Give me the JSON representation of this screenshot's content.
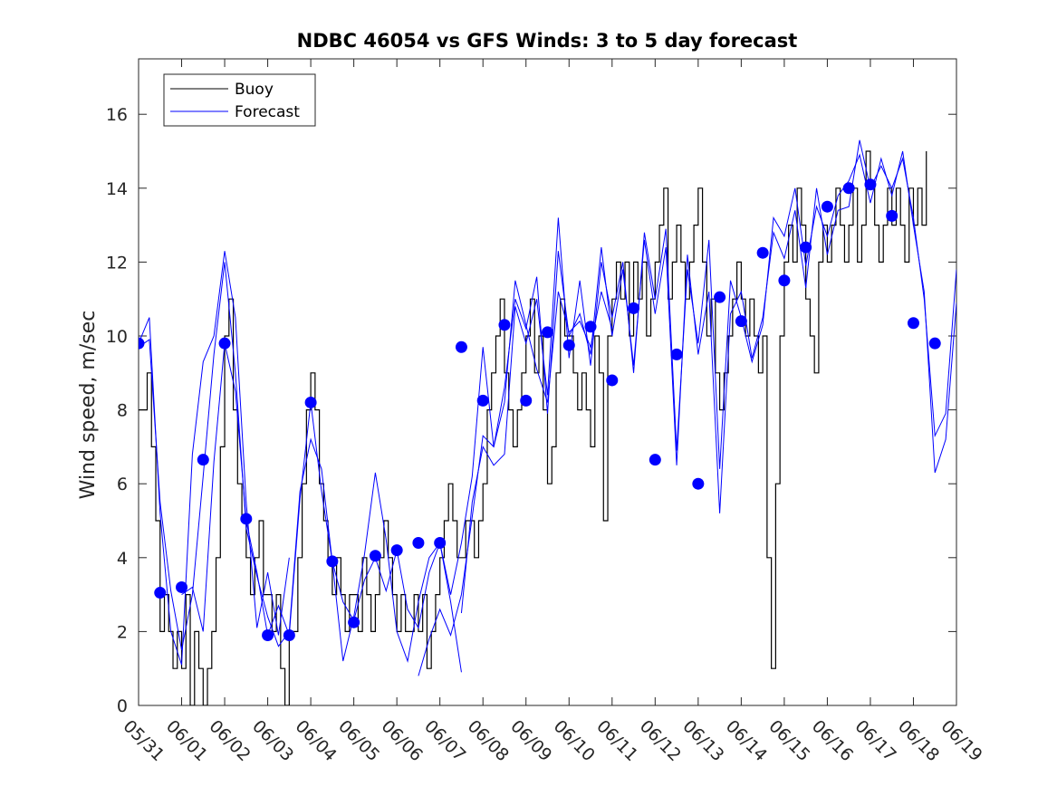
{
  "chart_data": {
    "type": "line",
    "title": "NDBC 46054 vs GFS Winds: 3 to 5 day forecast",
    "xlabel": "",
    "ylabel": "Wind speed, m/sec",
    "ylim": [
      0,
      17.5
    ],
    "yticks": [
      0,
      2,
      4,
      6,
      8,
      10,
      12,
      14,
      16
    ],
    "xlim": [
      0,
      19
    ],
    "xtick_labels": [
      "05/31",
      "06/01",
      "06/02",
      "06/03",
      "06/04",
      "06/05",
      "06/06",
      "06/07",
      "06/08",
      "06/09",
      "06/10",
      "06/11",
      "06/12",
      "06/13",
      "06/14",
      "06/15",
      "06/16",
      "06/17",
      "06/18",
      "06/19"
    ],
    "grid": false,
    "legend": {
      "position": "top-left",
      "entries": [
        "Buoy",
        "Forecast"
      ]
    },
    "colors": {
      "buoy": "#000000",
      "forecast": "#0000ff"
    },
    "series": [
      {
        "name": "Buoy",
        "x": [
          0.0,
          0.1,
          0.2,
          0.3,
          0.4,
          0.5,
          0.6,
          0.7,
          0.8,
          0.9,
          1.0,
          1.1,
          1.2,
          1.3,
          1.4,
          1.5,
          1.6,
          1.7,
          1.8,
          1.9,
          2.0,
          2.1,
          2.2,
          2.3,
          2.4,
          2.5,
          2.6,
          2.7,
          2.8,
          2.9,
          3.0,
          3.1,
          3.2,
          3.3,
          3.4,
          3.5,
          3.6,
          3.7,
          3.8,
          3.9,
          4.0,
          4.1,
          4.2,
          4.3,
          4.4,
          4.5,
          4.6,
          4.7,
          4.8,
          4.9,
          5.0,
          5.1,
          5.2,
          5.3,
          5.4,
          5.5,
          5.6,
          5.7,
          5.8,
          5.9,
          6.0,
          6.1,
          6.2,
          6.3,
          6.4,
          6.5,
          6.6,
          6.7,
          6.8,
          6.9,
          7.0,
          7.1,
          7.2,
          7.3,
          7.4,
          7.5,
          7.6,
          7.7,
          7.8,
          7.9,
          8.0,
          8.1,
          8.2,
          8.3,
          8.4,
          8.5,
          8.6,
          8.7,
          8.8,
          8.9,
          9.0,
          9.1,
          9.2,
          9.3,
          9.4,
          9.5,
          9.6,
          9.7,
          9.8,
          9.9,
          10.0,
          10.1,
          10.2,
          10.3,
          10.4,
          10.5,
          10.6,
          10.7,
          10.8,
          10.9,
          11.0,
          11.1,
          11.2,
          11.3,
          11.4,
          11.5,
          11.6,
          11.7,
          11.8,
          11.9,
          12.0,
          12.1,
          12.2,
          12.3,
          12.4,
          12.5,
          12.6,
          12.7,
          12.8,
          12.9,
          13.0,
          13.1,
          13.2,
          13.3,
          13.4,
          13.5,
          13.6,
          13.7,
          13.8,
          13.9,
          14.0,
          14.1,
          14.2,
          14.3,
          14.4,
          14.5,
          14.6,
          14.7,
          14.8,
          14.9,
          15.0,
          15.1,
          15.2,
          15.3,
          15.4,
          15.5,
          15.6,
          15.7,
          15.8,
          15.9,
          16.0,
          16.1,
          16.2,
          16.3,
          16.4,
          16.5,
          16.6,
          16.7,
          16.8,
          16.9,
          17.0,
          17.1,
          17.2,
          17.3,
          17.4,
          17.5,
          17.6,
          17.7,
          17.8,
          17.9,
          18.0,
          18.1,
          18.2,
          18.3
        ],
        "values": [
          8,
          8,
          9,
          7,
          5,
          2,
          3,
          2,
          1,
          2,
          1,
          3,
          0,
          2,
          1,
          0,
          1,
          2,
          4,
          7,
          10,
          11,
          8,
          6,
          5,
          4,
          3,
          4,
          5,
          3,
          3,
          2,
          3,
          1,
          0,
          2,
          2,
          4,
          6,
          8,
          9,
          8,
          6,
          5,
          4,
          3,
          4,
          3,
          2,
          3,
          3,
          2,
          4,
          3,
          2,
          3,
          4,
          5,
          4,
          3,
          2,
          3,
          2,
          2,
          3,
          2,
          3,
          1,
          2,
          3,
          4,
          5,
          6,
          5,
          4,
          4,
          5,
          5,
          4,
          5,
          6,
          8,
          9,
          10,
          11,
          9,
          8,
          7,
          8,
          9,
          10,
          11,
          9,
          10,
          8,
          6,
          7,
          9,
          11,
          10,
          10,
          9,
          8,
          9,
          8,
          7,
          10,
          9,
          5,
          10,
          11,
          12,
          11,
          12,
          10,
          12,
          11,
          12,
          10,
          11,
          12,
          13,
          14,
          11,
          12,
          13,
          12,
          11,
          12,
          13,
          14,
          12,
          10,
          11,
          9,
          8,
          9,
          10,
          11,
          12,
          11,
          10,
          11,
          10,
          9,
          10,
          4,
          1,
          6,
          10,
          12,
          13,
          12,
          14,
          13,
          11,
          10,
          9,
          12,
          13,
          12,
          13,
          14,
          13,
          12,
          13,
          14,
          12,
          13,
          15,
          14,
          13,
          12,
          13,
          14,
          13,
          14,
          13,
          12,
          14,
          13,
          14,
          13,
          15
        ]
      },
      {
        "name": "Forecast",
        "runs": [
          {
            "x": [
              0.0,
              0.25,
              0.5,
              0.75,
              1.0,
              1.25,
              1.5,
              1.75,
              2.0,
              2.25,
              2.5,
              2.75,
              3.0,
              3.25,
              3.5
            ],
            "values": [
              9.8,
              10.5,
              5.2,
              2.0,
              1.1,
              6.8,
              9.3,
              10.0,
              12.3,
              10.5,
              5.5,
              2.1,
              3.6,
              1.9,
              4.0
            ]
          },
          {
            "x": [
              0.0,
              0.25,
              0.5,
              0.75,
              1.0,
              1.25,
              1.5,
              1.75,
              2.0,
              2.25,
              2.5,
              2.75,
              3.0,
              3.25,
              3.5,
              3.75,
              4.0,
              4.25,
              4.5,
              4.75,
              5.0,
              5.25,
              5.5,
              5.75,
              6.0,
              6.25,
              6.5,
              6.75,
              7.0,
              7.25,
              7.5
            ],
            "values": [
              9.7,
              9.9,
              5.5,
              3.1,
              1.5,
              3.0,
              6.2,
              9.5,
              12.0,
              9.0,
              4.8,
              3.5,
              2.4,
              1.6,
              2.0,
              5.8,
              7.2,
              6.4,
              3.9,
              1.2,
              2.4,
              4.1,
              6.3,
              4.5,
              2.0,
              1.2,
              2.8,
              4.0,
              4.4,
              2.8,
              0.9
            ]
          },
          {
            "x": [
              1.0,
              1.25,
              1.5,
              1.75,
              2.0,
              2.25,
              2.5,
              2.75,
              3.0,
              3.25,
              3.5,
              3.75,
              4.0,
              4.25,
              4.5,
              4.75,
              5.0,
              5.25,
              5.5,
              5.75,
              6.0,
              6.25,
              6.5,
              6.75,
              7.0,
              7.25,
              7.5,
              7.75,
              8.0,
              8.25,
              8.5,
              8.75,
              9.0,
              9.25,
              9.5,
              9.75,
              10.0,
              10.25,
              10.5,
              10.75,
              11.0
            ],
            "values": [
              3.0,
              3.2,
              2.0,
              6.6,
              9.8,
              8.5,
              5.0,
              3.6,
              1.9,
              2.7,
              1.9,
              5.6,
              8.2,
              5.8,
              3.9,
              2.8,
              2.3,
              3.4,
              4.0,
              3.1,
              4.2,
              2.6,
              2.1,
              3.6,
              4.4,
              3.0,
              4.4,
              6.2,
              9.7,
              7.0,
              8.2,
              11.5,
              10.3,
              9.1,
              8.2,
              11.2,
              10.1,
              10.4,
              9.7,
              11.2,
              10.2
            ]
          },
          {
            "x": [
              6.5,
              6.75,
              7.0,
              7.25,
              7.5,
              7.75,
              8.0,
              8.25,
              8.5,
              8.75,
              9.0,
              9.25,
              9.5,
              9.75,
              10.0,
              10.25,
              10.5,
              10.75,
              11.0,
              11.25,
              11.5,
              11.75,
              12.0,
              12.25,
              12.5,
              12.75,
              13.0,
              13.25,
              13.5,
              13.75,
              14.0,
              14.25,
              14.5,
              14.75,
              15.0,
              15.25,
              15.5,
              15.75,
              16.0,
              16.25,
              16.5,
              16.75,
              17.0,
              17.25,
              17.5,
              17.75,
              18.0,
              18.25,
              18.5,
              18.75,
              19.0
            ],
            "values": [
              0.8,
              1.8,
              2.6,
              1.9,
              3.0,
              5.1,
              7.3,
              7.0,
              8.6,
              11.0,
              10.2,
              11.6,
              7.9,
              12.3,
              10.0,
              10.6,
              9.5,
              12.4,
              10.0,
              11.8,
              9.2,
              12.6,
              10.6,
              12.4,
              6.5,
              12.2,
              9.5,
              11.2,
              5.2,
              10.6,
              11.2,
              9.4,
              10.5,
              12.8,
              12.1,
              13.4,
              11.3,
              14.0,
              12.2,
              13.4,
              13.5,
              15.3,
              14.0,
              14.6,
              14.0,
              14.8,
              13.2,
              11.0,
              7.3,
              7.9,
              11.8
            ]
          },
          {
            "x": [
              7.5,
              7.75,
              8.0,
              8.25,
              8.5,
              8.75,
              9.0,
              9.25,
              9.5,
              9.75,
              10.0,
              10.25,
              10.5,
              10.75,
              11.0,
              11.25,
              11.5,
              11.75,
              12.0,
              12.25,
              12.5,
              12.75,
              13.0,
              13.25,
              13.5,
              13.75,
              14.0,
              14.25,
              14.5,
              14.75,
              15.0,
              15.25,
              15.5,
              15.75,
              16.0,
              16.25,
              16.5,
              16.75,
              17.0,
              17.25,
              17.5,
              17.75,
              18.0,
              18.25,
              18.5,
              18.75,
              19.0
            ],
            "values": [
              2.5,
              5.5,
              7.0,
              6.5,
              6.8,
              10.8,
              9.8,
              11.0,
              8.4,
              13.2,
              9.4,
              11.5,
              9.2,
              12.0,
              10.5,
              12.0,
              9.0,
              12.8,
              11.0,
              12.9,
              6.9,
              11.8,
              9.8,
              12.6,
              6.4,
              11.5,
              10.5,
              9.3,
              10.3,
              13.2,
              12.7,
              14.0,
              11.9,
              13.5,
              12.7,
              13.8,
              14.2,
              14.9,
              13.6,
              14.8,
              13.8,
              15.0,
              13.0,
              11.2,
              6.3,
              7.2,
              10.9
            ]
          }
        ]
      }
    ],
    "markers": {
      "name": "Forecast points",
      "x": [
        0.0,
        0.5,
        1.0,
        1.5,
        2.0,
        2.5,
        3.0,
        3.5,
        4.0,
        4.5,
        5.0,
        5.5,
        6.0,
        6.5,
        7.0,
        7.5,
        8.0,
        8.5,
        9.0,
        9.5,
        10.0,
        10.5,
        11.0,
        11.5,
        12.0,
        12.5,
        13.0,
        13.5,
        14.0,
        14.5,
        15.0,
        15.5,
        16.0,
        16.5,
        17.0,
        17.5,
        18.0,
        18.5
      ],
      "values": [
        9.8,
        3.05,
        3.2,
        6.65,
        9.8,
        5.05,
        1.9,
        1.9,
        8.2,
        3.9,
        2.25,
        4.05,
        4.2,
        4.4,
        4.4,
        9.7,
        8.25,
        10.3,
        8.25,
        10.1,
        9.75,
        10.25,
        8.8,
        10.75,
        6.65,
        9.5,
        6.0,
        11.05,
        10.4,
        12.25,
        11.5,
        12.4,
        13.5,
        14.0,
        14.1,
        13.25,
        10.35,
        9.8
      ]
    }
  }
}
